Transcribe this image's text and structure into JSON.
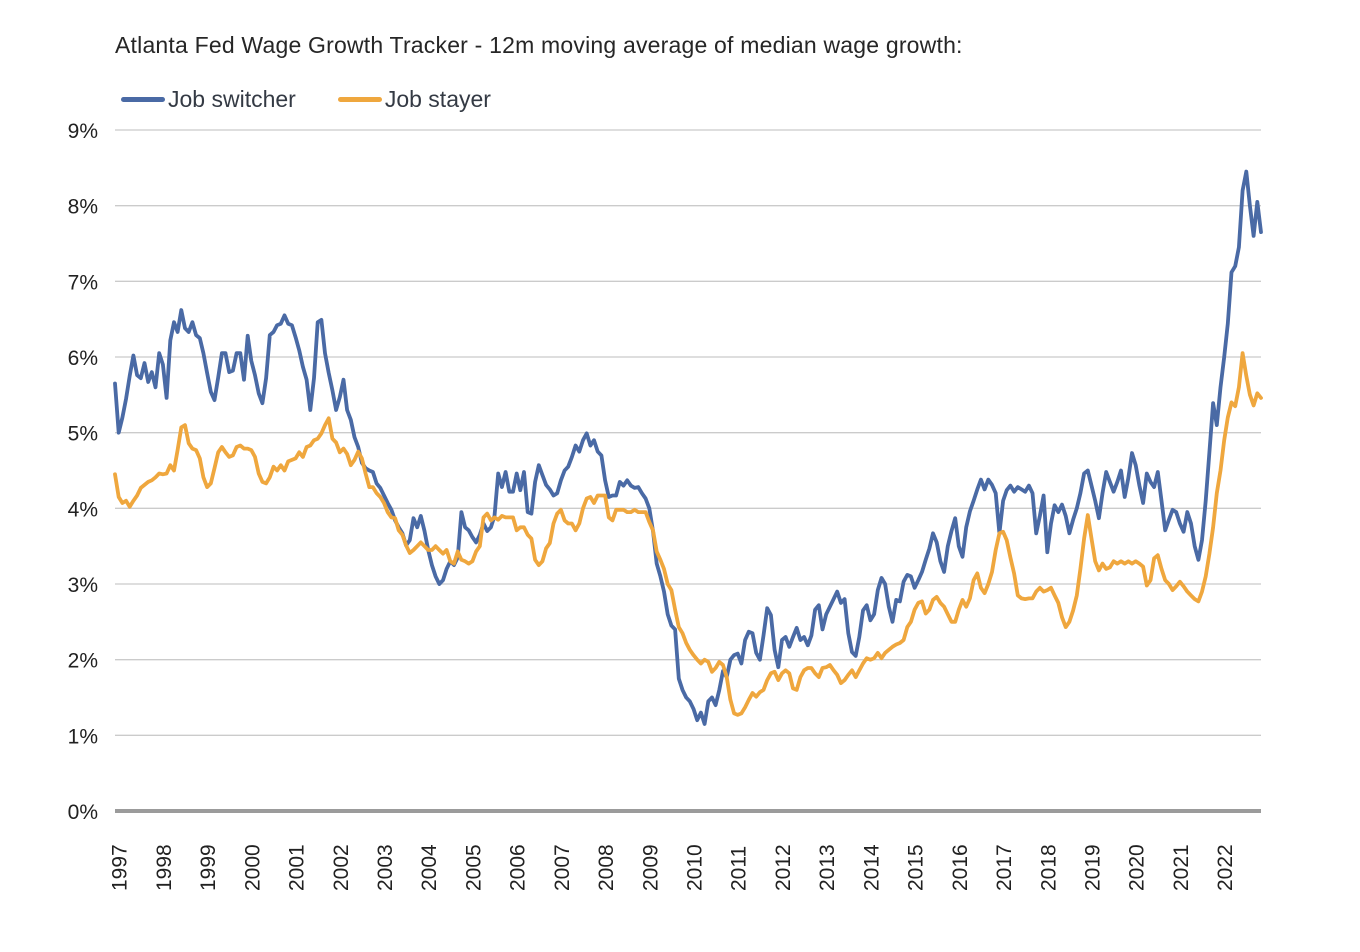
{
  "title": "Atlanta Fed Wage Growth Tracker - 12m moving average of median wage growth:",
  "colors": {
    "switcher_line": "#4a6aa5",
    "stayer_line": "#efa73e",
    "gridline": "#cbcbcb",
    "axis_line": "#9b9b9b",
    "tick_text": "#212121",
    "title_text": "#262626",
    "background": "#ffffff"
  },
  "chart_data": {
    "type": "line",
    "title": "Atlanta Fed Wage Growth Tracker - 12m moving average of median wage growth:",
    "xlabel": "",
    "ylabel": "",
    "y_unit": "%",
    "ylim": [
      0,
      9
    ],
    "grid": "horizontal",
    "legend_position": "top-left",
    "frequency": "monthly",
    "x_start": "1997-01",
    "x_end": "2022-12",
    "y_tick_labels": [
      "0%",
      "1%",
      "2%",
      "3%",
      "4%",
      "5%",
      "6%",
      "7%",
      "8%",
      "9%"
    ],
    "x_tick_labels": [
      "1997",
      "1998",
      "1999",
      "2000",
      "2001",
      "2002",
      "2003",
      "2004",
      "2005",
      "2006",
      "2007",
      "2008",
      "2009",
      "2010",
      "2011",
      "2012",
      "2013",
      "2014",
      "2015",
      "2016",
      "2017",
      "2018",
      "2019",
      "2020",
      "2021",
      "2022"
    ],
    "series": [
      {
        "name": "Job switcher",
        "color": "#4a6aa5",
        "values": [
          5.65,
          5.0,
          5.2,
          5.45,
          5.75,
          6.02,
          5.76,
          5.72,
          5.92,
          5.67,
          5.8,
          5.6,
          6.05,
          5.9,
          5.46,
          6.22,
          6.46,
          6.33,
          6.62,
          6.38,
          6.33,
          6.46,
          6.29,
          6.25,
          6.05,
          5.79,
          5.54,
          5.43,
          5.73,
          6.05,
          6.05,
          5.8,
          5.82,
          6.05,
          6.05,
          5.7,
          6.28,
          5.95,
          5.76,
          5.52,
          5.39,
          5.72,
          6.29,
          6.33,
          6.42,
          6.44,
          6.55,
          6.44,
          6.42,
          6.26,
          6.09,
          5.87,
          5.7,
          5.3,
          5.72,
          6.46,
          6.49,
          6.05,
          5.79,
          5.56,
          5.3,
          5.47,
          5.7,
          5.3,
          5.17,
          4.94,
          4.81,
          4.6,
          4.53,
          4.5,
          4.48,
          4.33,
          4.27,
          4.17,
          4.07,
          3.98,
          3.84,
          3.75,
          3.67,
          3.51,
          3.58,
          3.87,
          3.75,
          3.9,
          3.7,
          3.45,
          3.25,
          3.1,
          3.0,
          3.05,
          3.2,
          3.3,
          3.25,
          3.35,
          3.95,
          3.75,
          3.71,
          3.62,
          3.55,
          3.65,
          3.8,
          3.7,
          3.75,
          3.9,
          4.46,
          4.28,
          4.48,
          4.22,
          4.22,
          4.46,
          4.24,
          4.48,
          3.95,
          3.93,
          4.35,
          4.57,
          4.44,
          4.31,
          4.25,
          4.17,
          4.2,
          4.37,
          4.5,
          4.55,
          4.68,
          4.83,
          4.75,
          4.9,
          4.99,
          4.83,
          4.9,
          4.75,
          4.7,
          4.37,
          4.15,
          4.17,
          4.17,
          4.35,
          4.3,
          4.37,
          4.3,
          4.27,
          4.28,
          4.2,
          4.13,
          4.0,
          3.7,
          3.27,
          3.1,
          2.9,
          2.6,
          2.45,
          2.4,
          1.75,
          1.6,
          1.5,
          1.45,
          1.35,
          1.2,
          1.3,
          1.15,
          1.45,
          1.5,
          1.4,
          1.6,
          1.85,
          1.77,
          2.0,
          2.06,
          2.08,
          1.95,
          2.26,
          2.37,
          2.35,
          2.09,
          2.0,
          2.32,
          2.68,
          2.59,
          2.13,
          1.9,
          2.26,
          2.3,
          2.17,
          2.3,
          2.42,
          2.26,
          2.3,
          2.19,
          2.32,
          2.66,
          2.72,
          2.4,
          2.6,
          2.7,
          2.8,
          2.9,
          2.75,
          2.8,
          2.35,
          2.1,
          2.05,
          2.3,
          2.65,
          2.72,
          2.52,
          2.6,
          2.92,
          3.08,
          3.0,
          2.7,
          2.5,
          2.79,
          2.77,
          3.03,
          3.12,
          3.1,
          2.95,
          3.05,
          3.16,
          3.32,
          3.47,
          3.67,
          3.55,
          3.3,
          3.16,
          3.5,
          3.7,
          3.87,
          3.5,
          3.36,
          3.75,
          3.96,
          4.1,
          4.25,
          4.38,
          4.25,
          4.38,
          4.31,
          4.2,
          3.67,
          4.1,
          4.24,
          4.3,
          4.22,
          4.28,
          4.25,
          4.22,
          4.3,
          4.2,
          3.67,
          3.9,
          4.17,
          3.42,
          3.8,
          4.04,
          3.95,
          4.05,
          3.9,
          3.67,
          3.85,
          4.0,
          4.2,
          4.46,
          4.5,
          4.3,
          4.1,
          3.87,
          4.2,
          4.48,
          4.35,
          4.22,
          4.35,
          4.5,
          4.15,
          4.4,
          4.73,
          4.57,
          4.3,
          4.07,
          4.46,
          4.35,
          4.28,
          4.48,
          4.1,
          3.71,
          3.85,
          3.98,
          3.95,
          3.8,
          3.69,
          3.95,
          3.8,
          3.5,
          3.32,
          3.58,
          4.1,
          4.74,
          5.39,
          5.1,
          5.6,
          6.0,
          6.44,
          7.12,
          7.2,
          7.45,
          8.2,
          8.45,
          8.0,
          7.6,
          8.05,
          7.65
        ]
      },
      {
        "name": "Job stayer",
        "color": "#efa73e",
        "values": [
          4.45,
          4.15,
          4.07,
          4.1,
          4.02,
          4.1,
          4.17,
          4.27,
          4.31,
          4.35,
          4.37,
          4.41,
          4.46,
          4.45,
          4.46,
          4.57,
          4.5,
          4.77,
          5.07,
          5.1,
          4.86,
          4.79,
          4.77,
          4.66,
          4.41,
          4.28,
          4.33,
          4.53,
          4.74,
          4.81,
          4.74,
          4.68,
          4.7,
          4.81,
          4.83,
          4.79,
          4.79,
          4.77,
          4.68,
          4.46,
          4.35,
          4.33,
          4.41,
          4.55,
          4.5,
          4.57,
          4.5,
          4.62,
          4.64,
          4.66,
          4.74,
          4.68,
          4.81,
          4.83,
          4.9,
          4.92,
          4.99,
          5.1,
          5.19,
          4.92,
          4.87,
          4.74,
          4.79,
          4.72,
          4.57,
          4.64,
          4.75,
          4.66,
          4.46,
          4.28,
          4.28,
          4.2,
          4.15,
          4.07,
          3.95,
          3.88,
          3.87,
          3.71,
          3.65,
          3.51,
          3.41,
          3.45,
          3.5,
          3.55,
          3.5,
          3.45,
          3.45,
          3.5,
          3.45,
          3.4,
          3.45,
          3.3,
          3.27,
          3.43,
          3.32,
          3.3,
          3.27,
          3.3,
          3.43,
          3.5,
          3.88,
          3.93,
          3.84,
          3.88,
          3.85,
          3.9,
          3.88,
          3.88,
          3.88,
          3.71,
          3.75,
          3.75,
          3.65,
          3.6,
          3.32,
          3.25,
          3.3,
          3.47,
          3.54,
          3.8,
          3.93,
          3.98,
          3.84,
          3.8,
          3.8,
          3.71,
          3.8,
          4.0,
          4.13,
          4.15,
          4.07,
          4.17,
          4.17,
          4.17,
          3.88,
          3.84,
          3.98,
          3.98,
          3.98,
          3.95,
          3.95,
          3.98,
          3.95,
          3.95,
          3.95,
          3.82,
          3.71,
          3.43,
          3.32,
          3.2,
          3.0,
          2.92,
          2.66,
          2.43,
          2.35,
          2.22,
          2.13,
          2.06,
          2.0,
          1.95,
          2.0,
          1.97,
          1.84,
          1.89,
          1.97,
          1.93,
          1.77,
          1.47,
          1.29,
          1.27,
          1.29,
          1.37,
          1.47,
          1.56,
          1.51,
          1.57,
          1.6,
          1.73,
          1.82,
          1.84,
          1.73,
          1.82,
          1.86,
          1.82,
          1.62,
          1.6,
          1.77,
          1.86,
          1.89,
          1.89,
          1.82,
          1.77,
          1.89,
          1.9,
          1.93,
          1.86,
          1.8,
          1.69,
          1.73,
          1.8,
          1.86,
          1.77,
          1.86,
          1.95,
          2.02,
          2.0,
          2.02,
          2.09,
          2.02,
          2.09,
          2.13,
          2.17,
          2.2,
          2.22,
          2.26,
          2.43,
          2.5,
          2.66,
          2.75,
          2.77,
          2.61,
          2.66,
          2.79,
          2.83,
          2.75,
          2.7,
          2.6,
          2.5,
          2.5,
          2.66,
          2.79,
          2.7,
          2.81,
          3.05,
          3.14,
          2.95,
          2.88,
          3.0,
          3.16,
          3.45,
          3.67,
          3.69,
          3.58,
          3.35,
          3.14,
          2.85,
          2.81,
          2.8,
          2.81,
          2.81,
          2.9,
          2.95,
          2.9,
          2.92,
          2.95,
          2.85,
          2.75,
          2.56,
          2.43,
          2.5,
          2.65,
          2.85,
          3.2,
          3.6,
          3.91,
          3.6,
          3.3,
          3.18,
          3.27,
          3.2,
          3.22,
          3.3,
          3.27,
          3.3,
          3.27,
          3.3,
          3.27,
          3.3,
          3.27,
          3.23,
          2.98,
          3.05,
          3.34,
          3.38,
          3.2,
          3.05,
          3.0,
          2.92,
          2.97,
          3.03,
          2.97,
          2.9,
          2.85,
          2.8,
          2.77,
          2.9,
          3.1,
          3.4,
          3.75,
          4.2,
          4.5,
          4.9,
          5.2,
          5.4,
          5.35,
          5.6,
          6.05,
          5.75,
          5.5,
          5.36,
          5.52,
          5.46
        ]
      }
    ]
  }
}
